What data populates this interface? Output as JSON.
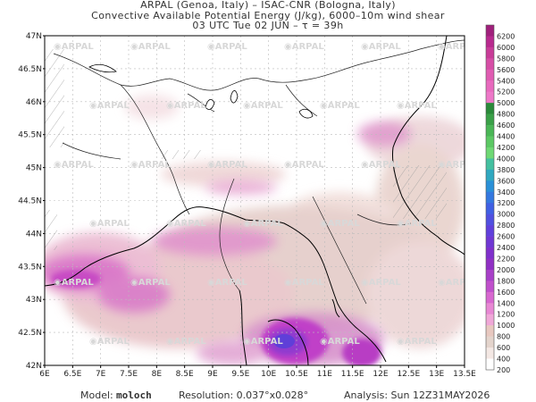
{
  "header": {
    "line1": "ARPAL (Genoa, Italy)  –  ISAC-CNR (Bologna, Italy)",
    "line2": "Convective Available Potential Energy (J/kg), 6000–10m wind shear",
    "line3": "03 UTC Tue 02 JUN  –  τ = 39h"
  },
  "map": {
    "lon_labels": [
      "6E",
      "6.5E",
      "7E",
      "7.5E",
      "8E",
      "8.5E",
      "9E",
      "9.5E",
      "10E",
      "10.5E",
      "11E",
      "11.5E",
      "12E",
      "12.5E",
      "13E",
      "13.5E"
    ],
    "lat_labels": [
      "47N",
      "46.5N",
      "46N",
      "45.5N",
      "45N",
      "44.5N",
      "44N",
      "43.5N",
      "43N",
      "42.5N",
      "42N"
    ],
    "watermark": "ARPAL"
  },
  "colorbar": {
    "labels": [
      "6200",
      "6000",
      "5800",
      "5600",
      "5400",
      "5200",
      "5000",
      "4800",
      "4600",
      "4400",
      "4200",
      "4000",
      "3800",
      "3600",
      "3400",
      "3200",
      "3000",
      "2800",
      "2600",
      "2400",
      "2200",
      "2000",
      "1800",
      "1600",
      "1400",
      "1200",
      "1000",
      "800",
      "600",
      "400",
      "200"
    ],
    "colors": [
      "#a0207c",
      "#b82a8e",
      "#c83c98",
      "#d64ea6",
      "#e05cb2",
      "#e86abe",
      "#ee78c8",
      "#2a8a3a",
      "#3aa048",
      "#4ab656",
      "#5cc864",
      "#6ed874",
      "#44c0a0",
      "#30a8c0",
      "#2a90d8",
      "#3478e0",
      "#4060e4",
      "#5050e0",
      "#6040dc",
      "#7038d4",
      "#8030cc",
      "#9030c4",
      "#a840c8",
      "#c050cc",
      "#d868d0",
      "#e888d4",
      "#f0a8d8",
      "#e8c8c0",
      "#e4d4cc",
      "#f4e8e4",
      "#ffffff"
    ]
  },
  "footer": {
    "model_label": "Model:",
    "model_value": "moloch",
    "resolution": "Resolution: 0.037°x0.028°",
    "analysis": "Analysis: Sun 12Z31MAY2026"
  }
}
